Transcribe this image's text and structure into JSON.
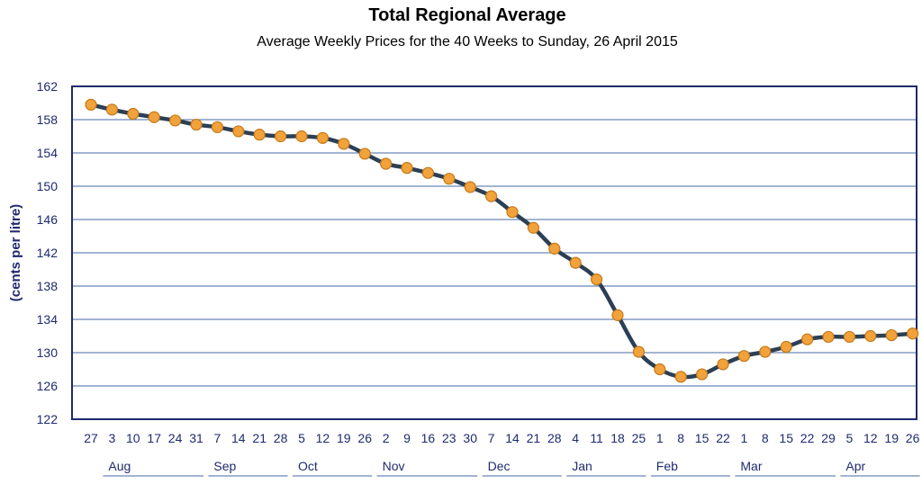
{
  "colors": {
    "frame": "#1f2a6e",
    "gridline": "#6b86b8",
    "line": "#2b3f55",
    "marker_fill": "#f2a23a",
    "marker_stroke": "#c47a1a",
    "tick_text": "#1f2a6e"
  },
  "chart_data": {
    "type": "line",
    "title": "Total Regional Average",
    "subtitle": "Average Weekly Prices for the 40 Weeks to Sunday, 26 April 2015",
    "ylabel": "(cents per litre)",
    "xlabel": "",
    "ylim": [
      122,
      162
    ],
    "yticks": [
      122,
      126,
      130,
      134,
      138,
      142,
      146,
      150,
      154,
      158,
      162
    ],
    "grid": true,
    "legend": "none",
    "categories": [
      "27",
      "3",
      "10",
      "17",
      "24",
      "31",
      "7",
      "14",
      "21",
      "28",
      "5",
      "12",
      "19",
      "26",
      "2",
      "9",
      "16",
      "23",
      "30",
      "7",
      "14",
      "21",
      "28",
      "4",
      "11",
      "18",
      "25",
      "1",
      "8",
      "15",
      "22",
      "1",
      "8",
      "15",
      "22",
      "29",
      "5",
      "12",
      "19",
      "26"
    ],
    "months": [
      "Aug",
      "Sep",
      "Oct",
      "Nov",
      "Dec",
      "Jan",
      "Feb",
      "Mar",
      "Apr"
    ],
    "month_spans": [
      [
        1,
        5
      ],
      [
        6,
        9
      ],
      [
        10,
        13
      ],
      [
        14,
        18
      ],
      [
        19,
        22
      ],
      [
        23,
        26
      ],
      [
        27,
        30
      ],
      [
        31,
        35
      ],
      [
        36,
        39
      ]
    ],
    "series": [
      {
        "values": [
          159.8,
          159.2,
          158.7,
          158.3,
          157.9,
          157.4,
          157.1,
          156.6,
          156.2,
          156.0,
          156.0,
          155.8,
          155.1,
          153.9,
          152.7,
          152.2,
          151.6,
          150.9,
          149.9,
          148.8,
          146.9,
          145.0,
          142.5,
          140.8,
          138.8,
          134.5,
          130.1,
          128.0,
          127.1,
          127.4,
          128.6,
          129.6,
          130.1,
          130.7,
          131.6,
          131.9,
          131.9,
          132.0,
          132.1,
          132.3
        ]
      }
    ]
  }
}
